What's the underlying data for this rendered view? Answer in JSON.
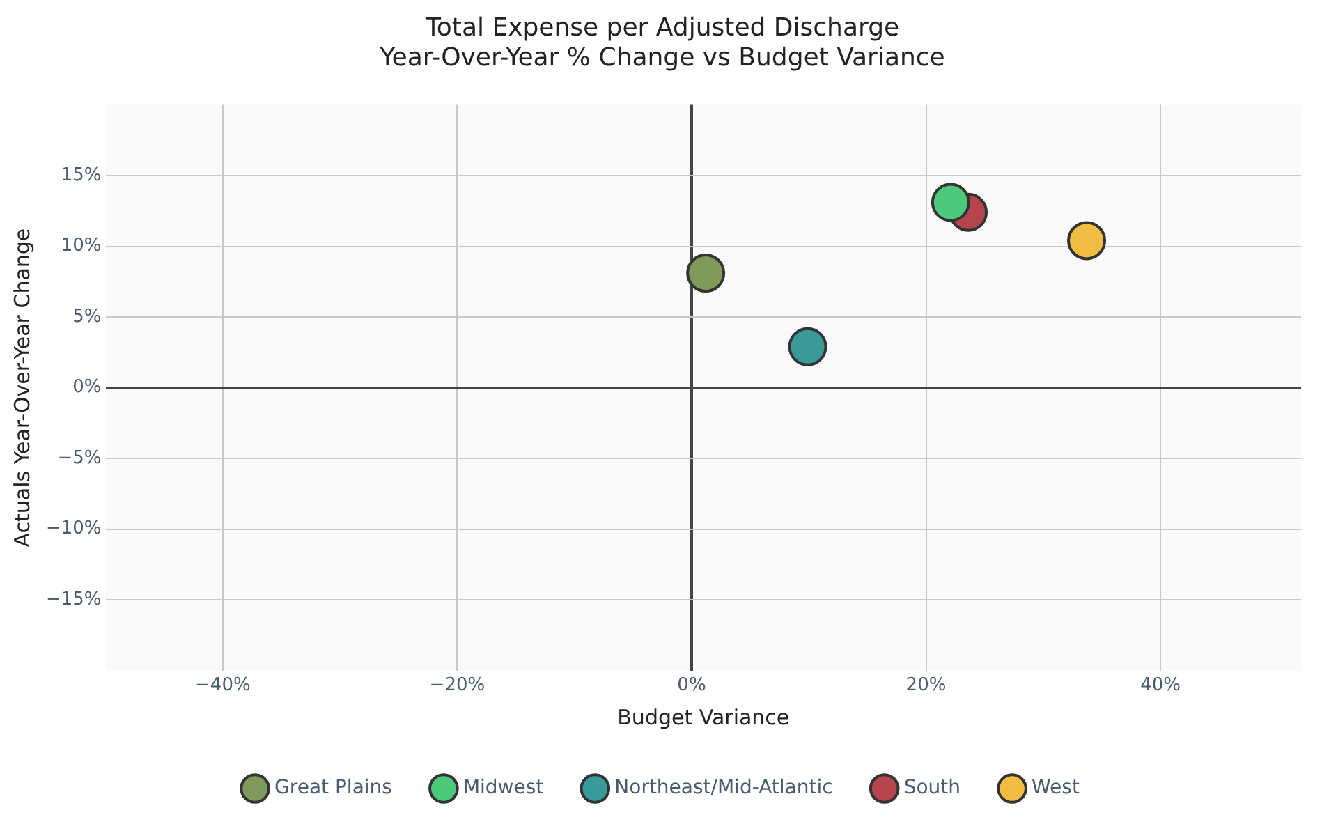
{
  "chart_data": {
    "type": "scatter",
    "title": [
      "Total Expense per Adjusted Discharge",
      "Year-Over-Year % Change vs Budget Variance"
    ],
    "xlabel": "Budget Variance",
    "ylabel": "Actuals Year-Over-Year Change",
    "series": [
      {
        "name": "Great Plains",
        "color": "#7f9a5a",
        "x": [
          1.2
        ],
        "values": [
          8.1
        ]
      },
      {
        "name": "Midwest",
        "color": "#4cc97a",
        "x": [
          22.1
        ],
        "values": [
          13.1
        ]
      },
      {
        "name": "Northeast/Mid-Atlantic",
        "color": "#3a9a9a",
        "x": [
          9.9
        ],
        "values": [
          2.9
        ]
      },
      {
        "name": "South",
        "color": "#b5444c",
        "x": [
          23.6
        ],
        "values": [
          12.4
        ]
      },
      {
        "name": "West",
        "color": "#f2bd42",
        "x": [
          33.7
        ],
        "values": [
          10.4
        ]
      }
    ],
    "xlim": [
      -50,
      52
    ],
    "ylim": [
      -20,
      20
    ],
    "xticks": [
      {
        "value": -40,
        "label": "−40%"
      },
      {
        "value": -20,
        "label": "−20%"
      },
      {
        "value": 0,
        "label": "0%"
      },
      {
        "value": 20,
        "label": "20%"
      },
      {
        "value": 40,
        "label": "40%"
      }
    ],
    "yticks": [
      {
        "value": -15,
        "label": "−15%"
      },
      {
        "value": -10,
        "label": "−10%"
      },
      {
        "value": -5,
        "label": "−5%"
      },
      {
        "value": 0,
        "label": "0%"
      },
      {
        "value": 5,
        "label": "5%"
      },
      {
        "value": 10,
        "label": "10%"
      },
      {
        "value": 15,
        "label": "15%"
      }
    ],
    "grid": true,
    "legend": "bottom",
    "marker": "circle"
  }
}
